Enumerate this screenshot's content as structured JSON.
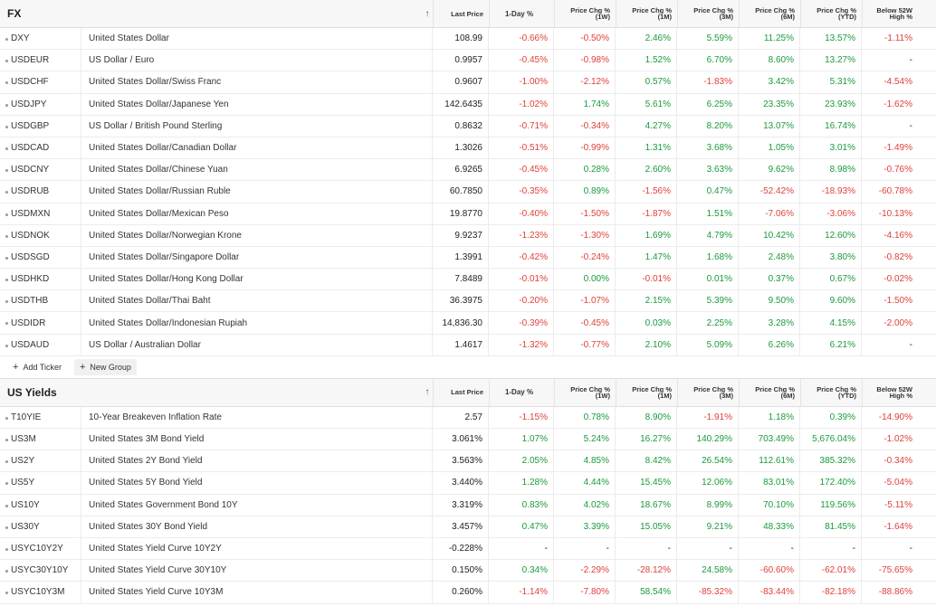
{
  "columns": {
    "sort_arrow": "↑",
    "last_price": "Last Price",
    "one_day": "1-Day %",
    "chg_1w": "Price Chg % (1W)",
    "chg_1m": "Price Chg % (1M)",
    "chg_3m": "Price Chg % (3M)",
    "chg_6m": "Price Chg % (6M)",
    "chg_ytd": "Price Chg % (YTD)",
    "below_52w": "Below 52W High %"
  },
  "fx": {
    "title": "FX",
    "rows": [
      {
        "symbol": "DXY",
        "name": "United States Dollar",
        "price": "108.99",
        "vals": [
          "-0.66%",
          "-0.50%",
          "2.46%",
          "5.59%",
          "11.25%",
          "13.57%",
          "-1.11%"
        ]
      },
      {
        "symbol": "USDEUR",
        "name": "US Dollar / Euro",
        "price": "0.9957",
        "vals": [
          "-0.45%",
          "-0.98%",
          "1.52%",
          "6.70%",
          "8.60%",
          "13.27%",
          "-"
        ]
      },
      {
        "symbol": "USDCHF",
        "name": "United States Dollar/Swiss Franc",
        "price": "0.9607",
        "vals": [
          "-1.00%",
          "-2.12%",
          "0.57%",
          "-1.83%",
          "3.42%",
          "5.31%",
          "-4.54%"
        ]
      },
      {
        "symbol": "USDJPY",
        "name": "United States Dollar/Japanese Yen",
        "price": "142.6435",
        "vals": [
          "-1.02%",
          "1.74%",
          "5.61%",
          "6.25%",
          "23.35%",
          "23.93%",
          "-1.62%"
        ]
      },
      {
        "symbol": "USDGBP",
        "name": "US Dollar / British Pound Sterling",
        "price": "0.8632",
        "vals": [
          "-0.71%",
          "-0.34%",
          "4.27%",
          "8.20%",
          "13.07%",
          "16.74%",
          "-"
        ]
      },
      {
        "symbol": "USDCAD",
        "name": "United States Dollar/Canadian Dollar",
        "price": "1.3026",
        "vals": [
          "-0.51%",
          "-0.99%",
          "1.31%",
          "3.68%",
          "1.05%",
          "3.01%",
          "-1.49%"
        ]
      },
      {
        "symbol": "USDCNY",
        "name": "United States Dollar/Chinese Yuan",
        "price": "6.9265",
        "vals": [
          "-0.45%",
          "0.28%",
          "2.60%",
          "3.63%",
          "9.62%",
          "8.98%",
          "-0.76%"
        ]
      },
      {
        "symbol": "USDRUB",
        "name": "United States Dollar/Russian Ruble",
        "price": "60.7850",
        "vals": [
          "-0.35%",
          "0.89%",
          "-1.56%",
          "0.47%",
          "-52.42%",
          "-18.93%",
          "-60.78%"
        ]
      },
      {
        "symbol": "USDMXN",
        "name": "United States Dollar/Mexican Peso",
        "price": "19.8770",
        "vals": [
          "-0.40%",
          "-1.50%",
          "-1.87%",
          "1.51%",
          "-7.06%",
          "-3.06%",
          "-10.13%"
        ]
      },
      {
        "symbol": "USDNOK",
        "name": "United States Dollar/Norwegian Krone",
        "price": "9.9237",
        "vals": [
          "-1.23%",
          "-1.30%",
          "1.69%",
          "4.79%",
          "10.42%",
          "12.60%",
          "-4.16%"
        ]
      },
      {
        "symbol": "USDSGD",
        "name": "United States Dollar/Singapore Dollar",
        "price": "1.3991",
        "vals": [
          "-0.42%",
          "-0.24%",
          "1.47%",
          "1.68%",
          "2.48%",
          "3.80%",
          "-0.82%"
        ]
      },
      {
        "symbol": "USDHKD",
        "name": "United States Dollar/Hong Kong Dollar",
        "price": "7.8489",
        "vals": [
          "-0.01%",
          "0.00%",
          "-0.01%",
          "0.01%",
          "0.37%",
          "0.67%",
          "-0.02%"
        ]
      },
      {
        "symbol": "USDTHB",
        "name": "United States Dollar/Thai Baht",
        "price": "36.3975",
        "vals": [
          "-0.20%",
          "-1.07%",
          "2.15%",
          "5.39%",
          "9.50%",
          "9.60%",
          "-1.50%"
        ]
      },
      {
        "symbol": "USDIDR",
        "name": "United States Dollar/Indonesian Rupiah",
        "price": "14,836.30",
        "vals": [
          "-0.39%",
          "-0.45%",
          "0.03%",
          "2.25%",
          "3.28%",
          "4.15%",
          "-2.00%"
        ]
      },
      {
        "symbol": "USDAUD",
        "name": "US Dollar / Australian Dollar",
        "price": "1.4617",
        "vals": [
          "-1.32%",
          "-0.77%",
          "2.10%",
          "5.09%",
          "6.26%",
          "6.21%",
          "-"
        ]
      }
    ]
  },
  "actions": {
    "add_ticker": "Add Ticker",
    "new_group": "New Group"
  },
  "yields": {
    "title": "US Yields",
    "rows": [
      {
        "symbol": "T10YIE",
        "name": "10-Year Breakeven Inflation Rate",
        "price": "2.57",
        "vals": [
          "-1.15%",
          "0.78%",
          "8.90%",
          "-1.91%",
          "1.18%",
          "0.39%",
          "-14.90%"
        ]
      },
      {
        "symbol": "US3M",
        "name": "United States 3M Bond Yield",
        "price": "3.061%",
        "vals": [
          "1.07%",
          "5.24%",
          "16.27%",
          "140.29%",
          "703.49%",
          "5,676.04%",
          "-1.02%"
        ]
      },
      {
        "symbol": "US2Y",
        "name": "United States 2Y Bond Yield",
        "price": "3.563%",
        "vals": [
          "2.05%",
          "4.85%",
          "8.42%",
          "26.54%",
          "112.61%",
          "385.32%",
          "-0.34%"
        ]
      },
      {
        "symbol": "US5Y",
        "name": "United States 5Y Bond Yield",
        "price": "3.440%",
        "vals": [
          "1.28%",
          "4.44%",
          "15.45%",
          "12.06%",
          "83.01%",
          "172.40%",
          "-5.04%"
        ]
      },
      {
        "symbol": "US10Y",
        "name": "United States Government Bond 10Y",
        "price": "3.319%",
        "vals": [
          "0.83%",
          "4.02%",
          "18.67%",
          "8.99%",
          "70.10%",
          "119.56%",
          "-5.11%"
        ]
      },
      {
        "symbol": "US30Y",
        "name": "United States 30Y Bond Yield",
        "price": "3.457%",
        "vals": [
          "0.47%",
          "3.39%",
          "15.05%",
          "9.21%",
          "48.33%",
          "81.45%",
          "-1.64%"
        ]
      },
      {
        "symbol": "USYC10Y2Y",
        "name": "United States Yield Curve 10Y2Y",
        "price": "-0.228%",
        "vals": [
          "-",
          "-",
          "-",
          "-",
          "-",
          "-",
          "-"
        ]
      },
      {
        "symbol": "USYC30Y10Y",
        "name": "United States Yield Curve 30Y10Y",
        "price": "0.150%",
        "vals": [
          "0.34%",
          "-2.29%",
          "-28.12%",
          "24.58%",
          "-60.60%",
          "-62.01%",
          "-75.65%"
        ]
      },
      {
        "symbol": "USYC10Y3M",
        "name": "United States Yield Curve 10Y3M",
        "price": "0.260%",
        "vals": [
          "-1.14%",
          "-7.80%",
          "58.54%",
          "-85.32%",
          "-83.44%",
          "-82.18%",
          "-88.86%"
        ]
      }
    ]
  },
  "colors": {
    "positive": "#1a9b3c",
    "negative": "#e0403a"
  }
}
